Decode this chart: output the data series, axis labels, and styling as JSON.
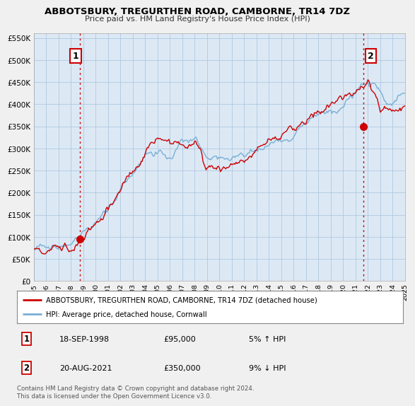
{
  "title": "ABBOTSBURY, TREGURTHEN ROAD, CAMBORNE, TR14 7DZ",
  "subtitle": "Price paid vs. HM Land Registry's House Price Index (HPI)",
  "legend_line1": "ABBOTSBURY, TREGURTHEN ROAD, CAMBORNE, TR14 7DZ (detached house)",
  "legend_line2": "HPI: Average price, detached house, Cornwall",
  "annotation1_label": "1",
  "annotation1_date": "18-SEP-1998",
  "annotation1_price": "£95,000",
  "annotation1_hpi": "5% ↑ HPI",
  "annotation2_label": "2",
  "annotation2_date": "20-AUG-2021",
  "annotation2_price": "£350,000",
  "annotation2_hpi": "9% ↓ HPI",
  "footer": "Contains HM Land Registry data © Crown copyright and database right 2024.\nThis data is licensed under the Open Government Licence v3.0.",
  "ylim": [
    0,
    560000
  ],
  "yticks": [
    0,
    50000,
    100000,
    150000,
    200000,
    250000,
    300000,
    350000,
    400000,
    450000,
    500000,
    550000
  ],
  "red_color": "#cc0000",
  "blue_color": "#7aafd4",
  "plot_bg_color": "#dce9f5",
  "background_color": "#f0f0f0",
  "vline_color": "#cc0000",
  "grid_color": "#b0c8e0",
  "sale1_year": 1998.72,
  "sale1_price": 95000,
  "sale2_year": 2021.63,
  "sale2_price": 350000
}
